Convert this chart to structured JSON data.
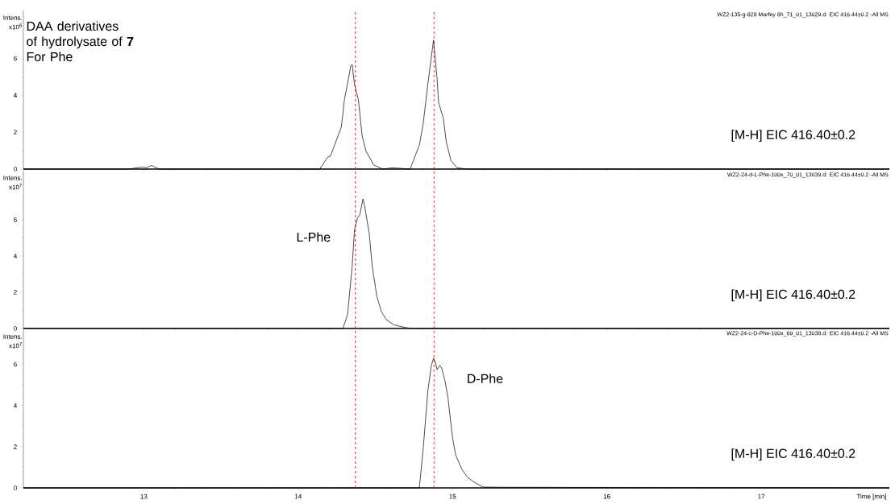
{
  "chart_data": [
    {
      "type": "line",
      "ylabel": "Intens.",
      "xlim": [
        12.22,
        17.83
      ],
      "xticks": [
        13,
        14,
        15,
        16,
        17
      ],
      "ylim": [
        0,
        8.6
      ],
      "yticks": [
        0,
        2,
        4,
        6
      ],
      "tick_labels": "y",
      "x": [
        12.22,
        12.9,
        12.98,
        13.02,
        13.05,
        13.1,
        14.14,
        14.19,
        14.21,
        14.25,
        14.28,
        14.3,
        14.33,
        14.34,
        14.35,
        14.365,
        14.39,
        14.415,
        14.44,
        14.49,
        14.55,
        14.61,
        14.725,
        14.785,
        14.81,
        14.84,
        14.877,
        14.9,
        14.91,
        14.94,
        14.96,
        14.99,
        15.03,
        15.1,
        17.83
      ],
      "series": [
        {
          "color": "#000000",
          "values": [
            0,
            0,
            0.1,
            0.08,
            0.2,
            0,
            0,
            0.63,
            0.71,
            1.62,
            2.28,
            3.77,
            5.09,
            5.58,
            5.67,
            4.59,
            3.77,
            1.78,
            0.96,
            0.22,
            0,
            0.07,
            0,
            1.29,
            2.45,
            4.59,
            6.99,
            4.92,
            3.6,
            2.78,
            1.46,
            0.46,
            0.07,
            0,
            0
          ]
        }
      ],
      "ref_lines": [
        {
          "axis": "x",
          "value": 14.37,
          "color": "#ff0000",
          "line_style": "dashed"
        },
        {
          "axis": "x",
          "value": 14.88,
          "color": "#ff0000",
          "line_style": "dashed"
        }
      ],
      "annotations": [
        "x10$^{6}$",
        "WZ2-135-g-828 Marfey 8h_71_01_13029.d: EIC 416.44±0.2 -All MS",
        "DAA derivatives of hydrolysate of **7** For Phe",
        "[M-H] EIC 416.40±0.2"
      ]
    },
    {
      "type": "line",
      "ylabel": "Intens.",
      "xlim": [
        12.22,
        17.83
      ],
      "xticks": [
        13,
        14,
        15,
        16,
        17
      ],
      "ylim": [
        0,
        8.7
      ],
      "yticks": [
        0,
        2,
        4,
        6
      ],
      "tick_labels": "y",
      "x": [
        12.22,
        14.29,
        14.32,
        14.35,
        14.365,
        14.385,
        14.4,
        14.42,
        14.43,
        14.46,
        14.48,
        14.51,
        14.54,
        14.57,
        14.62,
        14.67,
        14.73,
        17.83
      ],
      "series": [
        {
          "color": "#000000",
          "values": [
            0,
            0,
            0.76,
            3.43,
            5.44,
            6.1,
            6.28,
            7.15,
            6.78,
            5.27,
            3.43,
            1.76,
            0.92,
            0.5,
            0.2,
            0.1,
            0,
            0
          ]
        }
      ],
      "ref_lines": [
        {
          "axis": "x",
          "value": 14.37,
          "color": "#ff0000",
          "line_style": "dashed"
        },
        {
          "axis": "x",
          "value": 14.88,
          "color": "#ff0000",
          "line_style": "dashed"
        }
      ],
      "annotations": [
        "x10$^{7}$",
        "WZ2-24-d-L-Phe-100x_70_01_13039.d: EIC 416.44±0.2 -All MS",
        "L-Phe",
        "[M-H] EIC 416.40±0.2"
      ]
    },
    {
      "type": "line",
      "xlabel": "Time [min]",
      "ylabel": "Intens.",
      "xlim": [
        12.22,
        17.83
      ],
      "xticks": [
        13,
        14,
        15,
        16,
        17
      ],
      "ylim": [
        0,
        7.7
      ],
      "yticks": [
        0,
        2,
        4,
        6
      ],
      "x": [
        12.22,
        14.785,
        14.81,
        14.84,
        14.863,
        14.877,
        14.89,
        14.9,
        14.918,
        14.93,
        14.95,
        14.97,
        15.0,
        15.02,
        15.06,
        15.1,
        15.155,
        15.2,
        15.31,
        17.83
      ],
      "series": [
        {
          "color": "#000000",
          "values": [
            0,
            0,
            1.89,
            4.69,
            5.95,
            6.3,
            6.09,
            5.74,
            5.95,
            5.81,
            5.25,
            4.41,
            2.45,
            1.61,
            0.91,
            0.49,
            0.21,
            0.04,
            0.03,
            0
          ]
        }
      ],
      "ref_lines": [
        {
          "axis": "x",
          "value": 14.37,
          "color": "#ff0000",
          "line_style": "dashed"
        },
        {
          "axis": "x",
          "value": 14.88,
          "color": "#ff0000",
          "line_style": "dashed"
        }
      ],
      "annotations": [
        "x10$^{7}$",
        "WZ2-24-c-D-Phe-100x_69_01_13038.d: EIC 416.44±0.2 -All MS",
        "D-Phe",
        "[M-H] EIC 416.40±0.2"
      ]
    }
  ]
}
